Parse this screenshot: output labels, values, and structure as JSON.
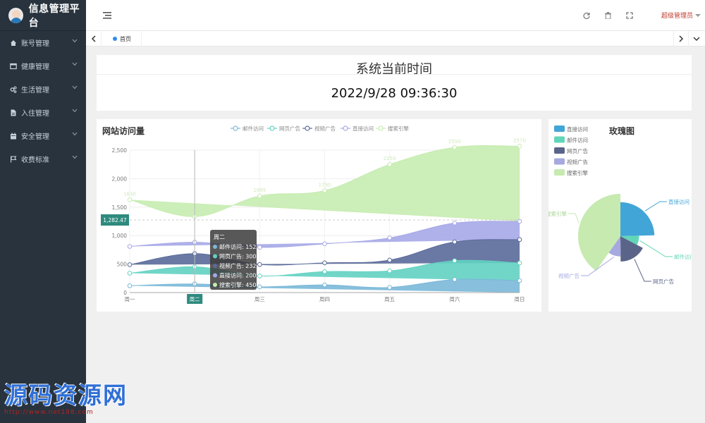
{
  "app": {
    "title": "信息管理平台"
  },
  "sidebar": {
    "items": [
      {
        "label": "账号管理",
        "icon": "home-icon"
      },
      {
        "label": "健康管理",
        "icon": "window-icon"
      },
      {
        "label": "生活管理",
        "icon": "gears-icon"
      },
      {
        "label": "入住管理",
        "icon": "document-icon"
      },
      {
        "label": "安全管理",
        "icon": "calendar-icon"
      },
      {
        "label": "收费标准",
        "icon": "flag-icon"
      }
    ]
  },
  "header": {
    "user": "超级管理员"
  },
  "tabs": [
    {
      "label": "首页"
    }
  ],
  "clock": {
    "title": "系统当前时间",
    "time": "2022/9/28 09:36:30"
  },
  "visits_card": {
    "title": "网站访问量",
    "pointer_label": "1,282.47",
    "tooltip": {
      "title": "周二",
      "rows": [
        {
          "label": "邮件访问: 152",
          "color": "#7ab8d8"
        },
        {
          "label": "网页广告: 300",
          "color": "#62d2c2"
        },
        {
          "label": "视频广告: 232",
          "color": "#5a6a9a"
        },
        {
          "label": "直接访问: 200",
          "color": "#a6a8e8"
        },
        {
          "label": "搜索引擎: 450",
          "color": "#c6ecb0"
        }
      ]
    }
  },
  "rose_card": {
    "title": "玫瑰图"
  },
  "chart_data": [
    {
      "type": "area",
      "title": "网站访问量",
      "stacked": true,
      "categories": [
        "周一",
        "周二",
        "周三",
        "周四",
        "周五",
        "周六",
        "周日"
      ],
      "ylim": [
        0,
        2500
      ],
      "yticks": [
        "0",
        "500",
        "1,000",
        "1,500",
        "2,000",
        "2,500"
      ],
      "highlighted_category": "周二",
      "series": [
        {
          "name": "邮件访问",
          "color": "#7ab8d8",
          "values": [
            120,
            152,
            101,
            134,
            90,
            230,
            210
          ]
        },
        {
          "name": "网页广告",
          "color": "#62d2c2",
          "values": [
            220,
            300,
            191,
            234,
            290,
            330,
            310
          ]
        },
        {
          "name": "视频广告",
          "color": "#5a6a9a",
          "values": [
            150,
            232,
            201,
            154,
            190,
            330,
            410
          ]
        },
        {
          "name": "直接访问",
          "color": "#a6a8e8",
          "values": [
            320,
            200,
            301,
            334,
            390,
            330,
            320
          ]
        },
        {
          "name": "搜索引擎",
          "color": "#c6ecb0",
          "values": [
            820,
            450,
            901,
            934,
            1290,
            1330,
            1320
          ]
        }
      ],
      "total_labels": [
        "1630",
        "1334",
        "1695",
        "1790",
        "2250",
        "2550",
        "2570"
      ]
    },
    {
      "type": "pie",
      "title": "玫瑰图",
      "rose": true,
      "series": [
        {
          "name": "直接访问",
          "color": "#42a5d8",
          "value": 335
        },
        {
          "name": "邮件访问",
          "color": "#62d6b8",
          "value": 110
        },
        {
          "name": "网页广告",
          "color": "#5a6488",
          "value": 234
        },
        {
          "name": "视频广告",
          "color": "#a6a8e0",
          "value": 135
        },
        {
          "name": "搜索引擎",
          "color": "#c6eab0",
          "value": 548
        }
      ]
    }
  ]
}
